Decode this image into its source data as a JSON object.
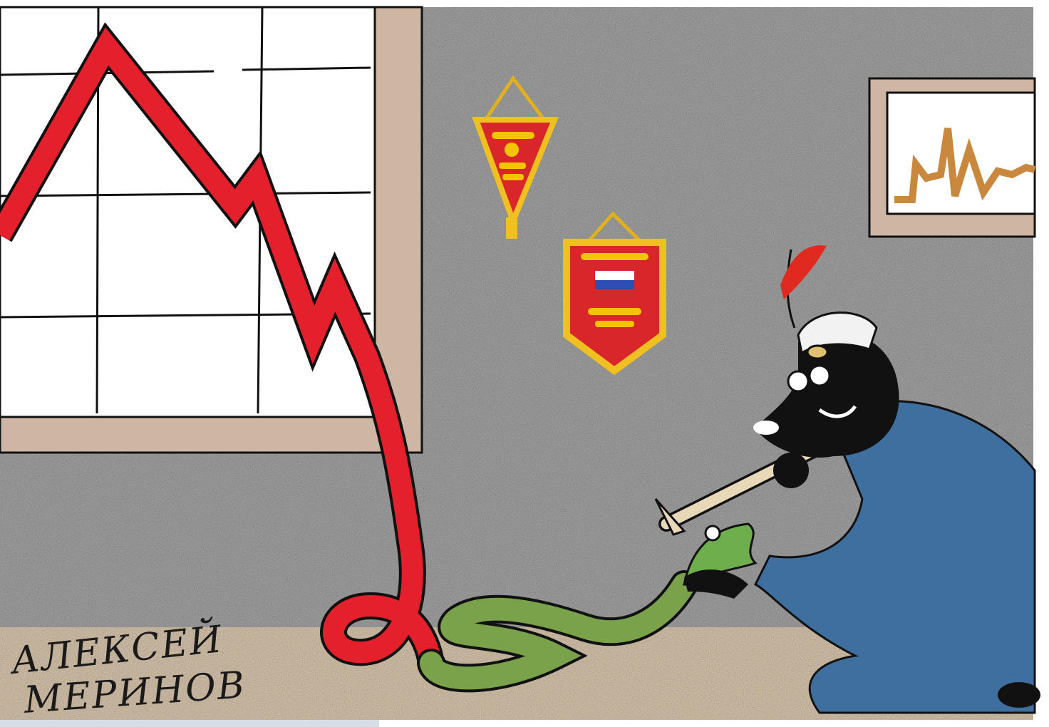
{
  "signature": {
    "first_name": "АЛЕКСЕЙ",
    "last_name": "МЕРИНОВ"
  }
}
